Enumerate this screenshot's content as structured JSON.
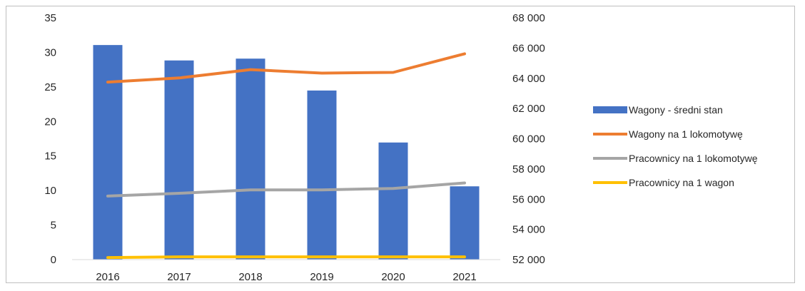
{
  "chart_data": {
    "type": "bar",
    "categories": [
      "2016",
      "2017",
      "2018",
      "2019",
      "2020",
      "2021"
    ],
    "series": [
      {
        "name": "Wagony - średni stan",
        "type": "bar",
        "axis": "secondary",
        "color": "#4472c4",
        "values": [
          66200,
          65180,
          65300,
          63190,
          59750,
          56850
        ]
      },
      {
        "name": "Wagony na 1 lokomotywę",
        "type": "line",
        "axis": "primary",
        "color": "#ed7d31",
        "values": [
          25.7,
          26.3,
          27.5,
          27.0,
          27.1,
          29.8
        ]
      },
      {
        "name": "Pracownicy na 1 lokomotywę",
        "type": "line",
        "axis": "primary",
        "color": "#a5a5a5",
        "values": [
          9.2,
          9.6,
          10.1,
          10.1,
          10.3,
          11.1
        ]
      },
      {
        "name": "Pracownicy na 1 wagon",
        "type": "line",
        "axis": "primary",
        "color": "#ffc000",
        "values": [
          0.3,
          0.4,
          0.4,
          0.4,
          0.4,
          0.4
        ]
      }
    ],
    "y_primary": {
      "ylim": [
        0,
        35
      ],
      "ticks": [
        "0",
        "5",
        "10",
        "15",
        "20",
        "25",
        "30",
        "35"
      ]
    },
    "y_secondary": {
      "ylim": [
        52000,
        68000
      ],
      "ticks": [
        "52 000",
        "54 000",
        "56 000",
        "58 000",
        "60 000",
        "62 000",
        "64 000",
        "66 000",
        "68 000"
      ]
    },
    "grid": false,
    "legend_position": "right",
    "title": "",
    "xlabel": "",
    "ylabel": ""
  }
}
